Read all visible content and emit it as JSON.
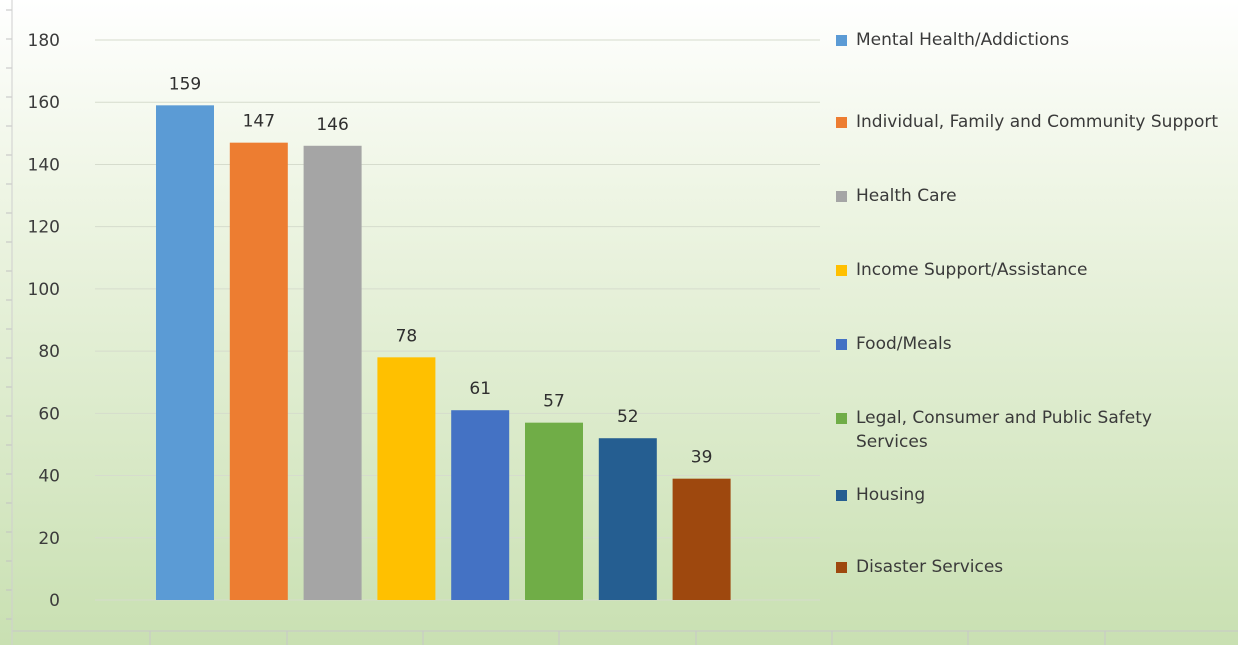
{
  "chart_data": {
    "type": "bar",
    "categories": [
      "Mental Health/Addictions",
      "Individual, Family and Community Support",
      "Health Care",
      "Income Support/Assistance",
      "Food/Meals",
      "Legal, Consumer and Public Safety Services",
      "Housing",
      "Disaster Services"
    ],
    "values": [
      159,
      147,
      146,
      78,
      61,
      57,
      52,
      39
    ],
    "colors": [
      "#5b9bd5",
      "#ed7d31",
      "#a5a5a5",
      "#ffc000",
      "#4472c4",
      "#70ad47",
      "#255e91",
      "#9e480e"
    ],
    "ylim": [
      0,
      180
    ],
    "yticks": [
      0,
      20,
      40,
      60,
      80,
      100,
      120,
      140,
      160,
      180
    ],
    "grid": true,
    "legend_position": "right",
    "data_labels": true,
    "title": "",
    "xlabel": "",
    "ylabel": ""
  }
}
